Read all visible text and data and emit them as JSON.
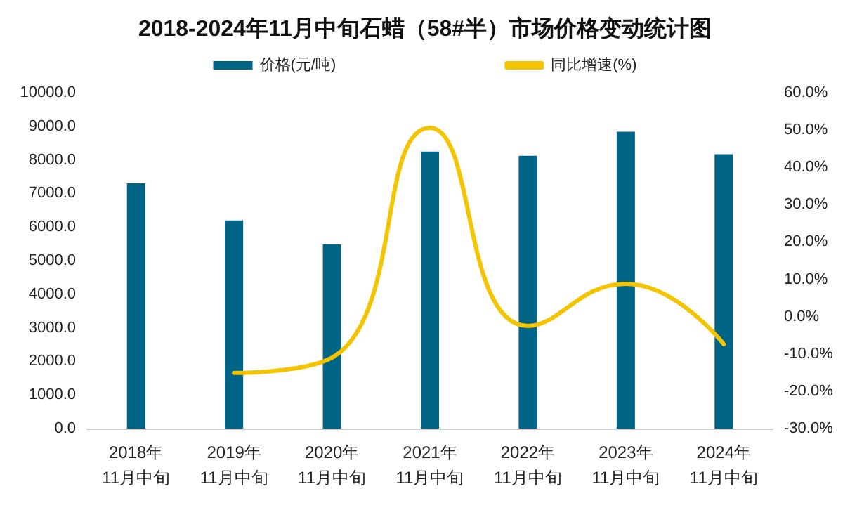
{
  "chart_data": {
    "type": "bar",
    "title": "2018-2024年11月中旬石蜡（58#半）市场价格变动统计图",
    "categories": [
      "2018年\n11月中旬",
      "2019年\n11月中旬",
      "2020年\n11月中旬",
      "2021年\n11月中旬",
      "2022年\n11月中旬",
      "2023年\n11月中旬",
      "2024年\n11月中旬"
    ],
    "series": [
      {
        "name": "价格(元/吨)",
        "color": "#006487",
        "values": [
          7300,
          6200,
          5480,
          8250,
          8120,
          8840,
          8170
        ]
      },
      {
        "name": "同比增速(%)",
        "type": "line",
        "axis": "y2",
        "color": "#f5c400",
        "values": [
          null,
          -15.1,
          -11,
          50.6,
          -2.5,
          8.8,
          -7.4
        ]
      }
    ],
    "ylim": [
      0,
      10000
    ],
    "yticks": [
      {
        "value": 0,
        "label": "0.0"
      },
      {
        "value": 1000,
        "label": "1000.0"
      },
      {
        "value": 2000,
        "label": "2000.0"
      },
      {
        "value": 3000,
        "label": "3000.0"
      },
      {
        "value": 4000,
        "label": "4000.0"
      },
      {
        "value": 5000,
        "label": "5000.0"
      },
      {
        "value": 6000,
        "label": "6000.0"
      },
      {
        "value": 7000,
        "label": "7000.0"
      },
      {
        "value": 8000,
        "label": "8000.0"
      },
      {
        "value": 9000,
        "label": "9000.0"
      },
      {
        "value": 10000,
        "label": "10000.0"
      }
    ],
    "y2lim": [
      -30,
      60
    ],
    "y2ticks": [
      {
        "value": -30,
        "label": "-30.0%"
      },
      {
        "value": -20,
        "label": "-20.0%"
      },
      {
        "value": -10,
        "label": "-10.0%"
      },
      {
        "value": 0,
        "label": "0.0%"
      },
      {
        "value": 10,
        "label": "10.0%"
      },
      {
        "value": 20,
        "label": "20.0%"
      },
      {
        "value": 30,
        "label": "30.0%"
      },
      {
        "value": 40,
        "label": "40.0%"
      },
      {
        "value": 50,
        "label": "50.0%"
      },
      {
        "value": 60,
        "label": "60.0%"
      }
    ],
    "grid": false,
    "legend": "top",
    "marker": "none",
    "line_style": "solid"
  }
}
